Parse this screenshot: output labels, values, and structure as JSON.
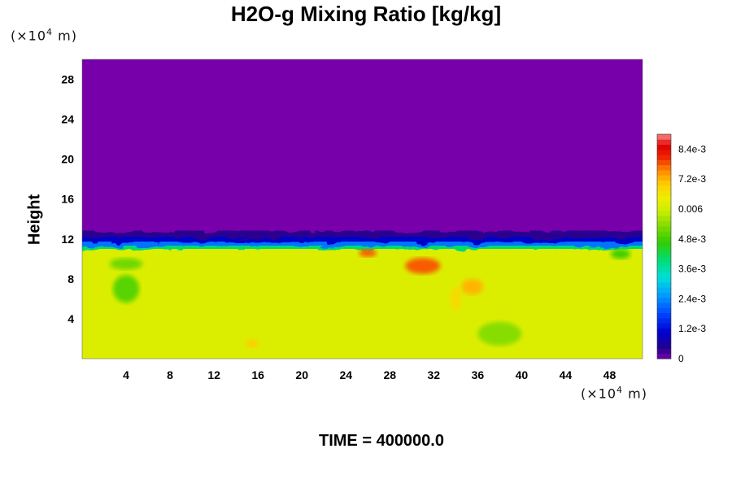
{
  "chart_data": {
    "type": "heatmap",
    "title": "H2O-g Mixing Ratio [kg/kg]",
    "ylabel": "Height",
    "y_unit": {
      "prefix": "(×10",
      "exp": "4",
      "suffix": " m)"
    },
    "x_unit": {
      "prefix": "(×10",
      "exp": "4",
      "suffix": " m)"
    },
    "xlim": [
      0,
      51
    ],
    "ylim": [
      0,
      30
    ],
    "x_ticks": [
      4,
      8,
      12,
      16,
      20,
      24,
      28,
      32,
      36,
      40,
      44,
      48
    ],
    "y_ticks": [
      4,
      8,
      12,
      16,
      20,
      24,
      28
    ],
    "colorbar": {
      "range": [
        0,
        0.009
      ],
      "labels": [
        {
          "value": 0,
          "text": "0"
        },
        {
          "value": 0.0012,
          "text": "1.2e-3"
        },
        {
          "value": 0.0024,
          "text": "2.4e-3"
        },
        {
          "value": 0.0036,
          "text": "3.6e-3"
        },
        {
          "value": 0.0048,
          "text": "4.8e-3"
        },
        {
          "value": 0.006,
          "text": "0.006"
        },
        {
          "value": 0.0072,
          "text": "7.2e-3"
        },
        {
          "value": 0.0084,
          "text": "8.4e-3"
        }
      ]
    },
    "field_description": {
      "upper_layer_value": 0,
      "moist_layer_top_height": 11,
      "lower_layer_value_approx": 0.0062,
      "peak_value_approx": 0.0078
    },
    "time_label": "TIME = 400000.0",
    "colors": {
      "dry": "#7700aa",
      "background": "#ffffff"
    }
  }
}
